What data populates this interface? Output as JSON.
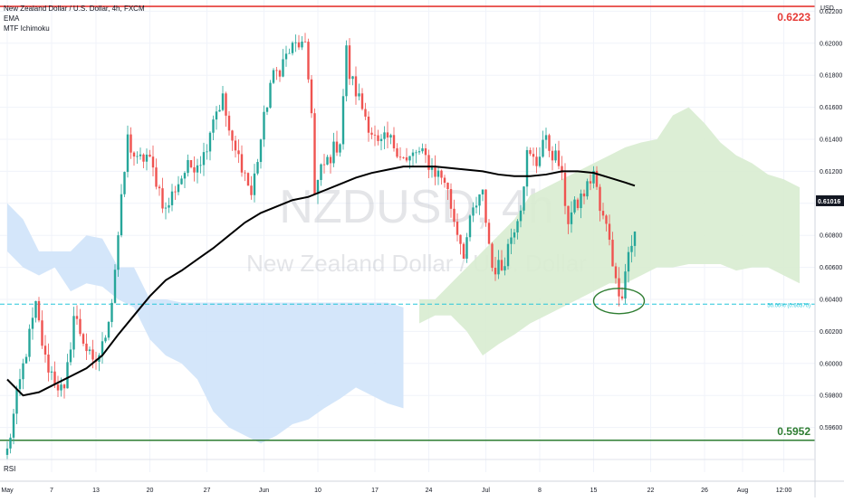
{
  "legend": {
    "symbol_line": "New Zealand Dollar / U.S. Dollar, 4h, FXCM",
    "ema_label": "EMA",
    "ichimoku_label": "MTF Ichimoku"
  },
  "rsi_label": "RSI",
  "currency": "USD",
  "watermark": {
    "ticker": "NZDUSD, 4h",
    "name": "New Zealand Dollar / U.S. Dollar"
  },
  "colors": {
    "up": "#26a69a",
    "down": "#ef5350",
    "ema": "#000000",
    "cloud_bull": "#d8ecd0",
    "cloud_bear": "#cfe3fa",
    "resistance": "#e53935",
    "support": "#2e7d32",
    "fib": "#26c6da",
    "circle": "#2e7d32"
  },
  "chart_data": {
    "type": "candlestick",
    "title": "New Zealand Dollar / U.S. Dollar, 4h, FXCM",
    "y_axis": {
      "range": [
        0.594,
        0.6227
      ],
      "ticks": [
        0.596,
        0.598,
        0.6,
        0.602,
        0.604,
        0.606,
        0.608,
        0.61,
        0.612,
        0.614,
        0.616,
        0.618,
        0.62,
        0.622
      ],
      "tick_labels": [
        "0.59600",
        "0.59800",
        "0.60000",
        "0.60200",
        "0.60400",
        "0.60600",
        "0.60800",
        "0.61000",
        "0.61200",
        "0.61400",
        "0.61600",
        "0.61800",
        "0.62000",
        "0.62200"
      ]
    },
    "x_axis": {
      "range": [
        0,
        260
      ],
      "ticks": [
        {
          "x": 0,
          "label": "May"
        },
        {
          "x": 14,
          "label": "7"
        },
        {
          "x": 28,
          "label": "13"
        },
        {
          "x": 45,
          "label": "20"
        },
        {
          "x": 63,
          "label": "27"
        },
        {
          "x": 81,
          "label": "Jun"
        },
        {
          "x": 98,
          "label": "10"
        },
        {
          "x": 116,
          "label": "17"
        },
        {
          "x": 133,
          "label": "24"
        },
        {
          "x": 151,
          "label": "Jul"
        },
        {
          "x": 168,
          "label": "8"
        },
        {
          "x": 185,
          "label": "15"
        },
        {
          "x": 203,
          "label": "22"
        },
        {
          "x": 220,
          "label": "26"
        },
        {
          "x": 232,
          "label": "Aug"
        },
        {
          "x": 245,
          "label": "12:00"
        }
      ]
    },
    "anchors": [
      [
        0,
        0.5945
      ],
      [
        3,
        0.5978
      ],
      [
        6,
        0.6008
      ],
      [
        9,
        0.6035
      ],
      [
        12,
        0.6002
      ],
      [
        15,
        0.599
      ],
      [
        18,
        0.598
      ],
      [
        21,
        0.603
      ],
      [
        24,
        0.6015
      ],
      [
        27,
        0.5998
      ],
      [
        30,
        0.601
      ],
      [
        33,
        0.604
      ],
      [
        36,
        0.61
      ],
      [
        38,
        0.614
      ],
      [
        41,
        0.6125
      ],
      [
        44,
        0.613
      ],
      [
        47,
        0.6115
      ],
      [
        50,
        0.6095
      ],
      [
        53,
        0.611
      ],
      [
        56,
        0.612
      ],
      [
        59,
        0.6125
      ],
      [
        62,
        0.613
      ],
      [
        65,
        0.6155
      ],
      [
        68,
        0.6165
      ],
      [
        71,
        0.6135
      ],
      [
        74,
        0.6125
      ],
      [
        77,
        0.6105
      ],
      [
        80,
        0.614
      ],
      [
        83,
        0.6175
      ],
      [
        86,
        0.6185
      ],
      [
        89,
        0.6195
      ],
      [
        92,
        0.62
      ],
      [
        94,
        0.6195
      ],
      [
        96,
        0.616
      ],
      [
        97,
        0.6105
      ],
      [
        99,
        0.612
      ],
      [
        102,
        0.613
      ],
      [
        105,
        0.614
      ],
      [
        107,
        0.6195
      ],
      [
        108,
        0.618
      ],
      [
        110,
        0.617
      ],
      [
        112,
        0.616
      ],
      [
        114,
        0.615
      ],
      [
        117,
        0.6135
      ],
      [
        120,
        0.614
      ],
      [
        123,
        0.6135
      ],
      [
        126,
        0.6125
      ],
      [
        129,
        0.6132
      ],
      [
        132,
        0.6128
      ],
      [
        135,
        0.612
      ],
      [
        138,
        0.6115
      ],
      [
        141,
        0.609
      ],
      [
        144,
        0.607
      ],
      [
        147,
        0.6095
      ],
      [
        150,
        0.6105
      ],
      [
        153,
        0.606
      ],
      [
        156,
        0.606
      ],
      [
        159,
        0.608
      ],
      [
        162,
        0.61
      ],
      [
        164,
        0.613
      ],
      [
        167,
        0.6125
      ],
      [
        169,
        0.614
      ],
      [
        171,
        0.6135
      ],
      [
        174,
        0.6125
      ],
      [
        177,
        0.609
      ],
      [
        180,
        0.61
      ],
      [
        183,
        0.611
      ],
      [
        185,
        0.612
      ],
      [
        187,
        0.6095
      ],
      [
        190,
        0.608
      ],
      [
        192,
        0.605
      ],
      [
        194,
        0.6045
      ],
      [
        196,
        0.607
      ],
      [
        198,
        0.608
      ]
    ],
    "ema": [
      [
        0,
        0.599
      ],
      [
        5,
        0.598
      ],
      [
        10,
        0.5982
      ],
      [
        15,
        0.5987
      ],
      [
        20,
        0.5992
      ],
      [
        25,
        0.5997
      ],
      [
        30,
        0.6005
      ],
      [
        35,
        0.6018
      ],
      [
        40,
        0.603
      ],
      [
        45,
        0.6042
      ],
      [
        50,
        0.6052
      ],
      [
        55,
        0.6058
      ],
      [
        60,
        0.6065
      ],
      [
        65,
        0.6072
      ],
      [
        70,
        0.608
      ],
      [
        75,
        0.6088
      ],
      [
        80,
        0.6094
      ],
      [
        85,
        0.6098
      ],
      [
        90,
        0.6102
      ],
      [
        95,
        0.6104
      ],
      [
        100,
        0.6108
      ],
      [
        105,
        0.6112
      ],
      [
        110,
        0.6116
      ],
      [
        115,
        0.6119
      ],
      [
        120,
        0.6121
      ],
      [
        125,
        0.6123
      ],
      [
        130,
        0.6123
      ],
      [
        135,
        0.6123
      ],
      [
        140,
        0.6122
      ],
      [
        145,
        0.6121
      ],
      [
        150,
        0.612
      ],
      [
        155,
        0.6118
      ],
      [
        160,
        0.6117
      ],
      [
        165,
        0.6117
      ],
      [
        170,
        0.6118
      ],
      [
        175,
        0.612
      ],
      [
        180,
        0.612
      ],
      [
        185,
        0.6119
      ],
      [
        190,
        0.6116
      ],
      [
        195,
        0.6113
      ],
      [
        198,
        0.6111
      ]
    ],
    "cloud_bearish": [
      [
        0,
        0.61,
        0.607
      ],
      [
        5,
        0.609,
        0.606
      ],
      [
        10,
        0.607,
        0.6055
      ],
      [
        15,
        0.607,
        0.606
      ],
      [
        20,
        0.607,
        0.6045
      ],
      [
        25,
        0.608,
        0.605
      ],
      [
        30,
        0.6078,
        0.6048
      ],
      [
        35,
        0.606,
        0.604
      ],
      [
        40,
        0.606,
        0.6035
      ],
      [
        45,
        0.604,
        0.6015
      ],
      [
        50,
        0.604,
        0.6005
      ],
      [
        55,
        0.6038,
        0.6
      ],
      [
        60,
        0.6038,
        0.599
      ],
      [
        65,
        0.6038,
        0.597
      ],
      [
        70,
        0.6038,
        0.596
      ],
      [
        75,
        0.6038,
        0.5955
      ],
      [
        80,
        0.6038,
        0.595
      ],
      [
        85,
        0.6038,
        0.5955
      ],
      [
        90,
        0.6038,
        0.5962
      ],
      [
        95,
        0.6038,
        0.5965
      ],
      [
        100,
        0.6038,
        0.5972
      ],
      [
        105,
        0.6038,
        0.5978
      ],
      [
        110,
        0.6038,
        0.5985
      ],
      [
        115,
        0.6038,
        0.598
      ],
      [
        120,
        0.6038,
        0.5975
      ],
      [
        125,
        0.6035,
        0.5972
      ]
    ],
    "cloud_bullish": [
      [
        130,
        0.604,
        0.6025
      ],
      [
        135,
        0.604,
        0.603
      ],
      [
        140,
        0.605,
        0.603
      ],
      [
        145,
        0.606,
        0.602
      ],
      [
        150,
        0.607,
        0.6005
      ],
      [
        155,
        0.608,
        0.6012
      ],
      [
        160,
        0.609,
        0.6018
      ],
      [
        165,
        0.6105,
        0.6025
      ],
      [
        170,
        0.611,
        0.603
      ],
      [
        175,
        0.6115,
        0.6035
      ],
      [
        180,
        0.612,
        0.604
      ],
      [
        185,
        0.6125,
        0.6045
      ],
      [
        190,
        0.613,
        0.605
      ],
      [
        195,
        0.6135,
        0.605
      ],
      [
        200,
        0.6138,
        0.6055
      ],
      [
        205,
        0.614,
        0.606
      ],
      [
        210,
        0.6155,
        0.606
      ],
      [
        215,
        0.616,
        0.6062
      ],
      [
        220,
        0.615,
        0.6062
      ],
      [
        225,
        0.6138,
        0.6062
      ],
      [
        230,
        0.613,
        0.6058
      ],
      [
        235,
        0.6125,
        0.606
      ],
      [
        240,
        0.6118,
        0.606
      ],
      [
        245,
        0.6115,
        0.6055
      ],
      [
        250,
        0.611,
        0.605
      ]
    ],
    "levels": {
      "resistance": {
        "value": 0.6223,
        "label": "0.6223"
      },
      "support": {
        "value": 0.5952,
        "label": "0.5952"
      },
      "fib": {
        "value": 0.6037,
        "label": "50.00% (0.60370)"
      },
      "current": {
        "value": 0.61016,
        "label": "0.61016"
      }
    },
    "annotation_circle": {
      "x": 193,
      "y": 0.6039
    }
  }
}
